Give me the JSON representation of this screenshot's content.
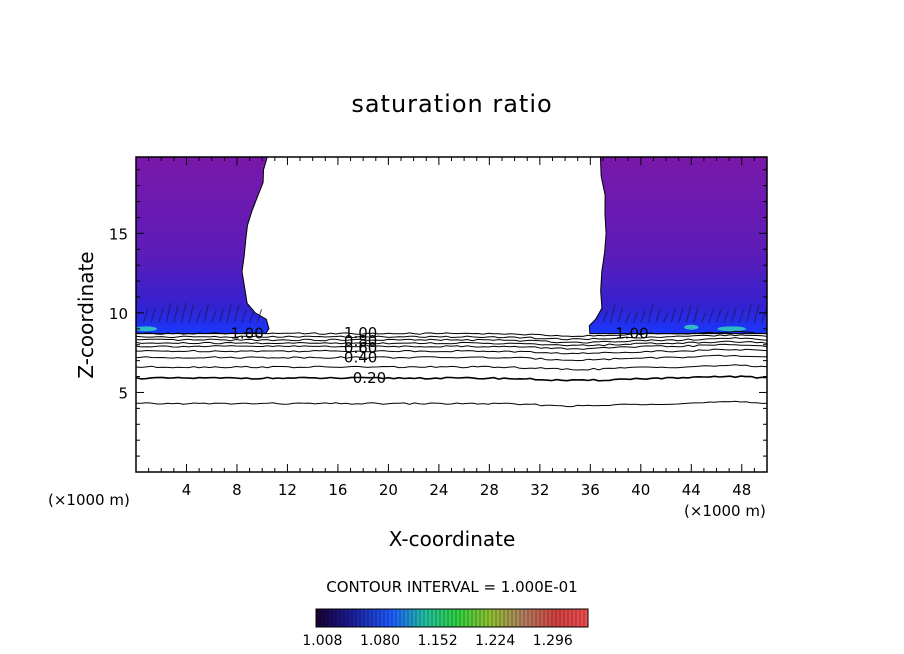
{
  "chart_data": {
    "type": "contour",
    "title": "saturation ratio",
    "xlabel": "X-coordinate",
    "ylabel": "Z-coordinate",
    "x_unit_left": "(×1000 m)",
    "x_unit_right": "(×1000 m)",
    "xlim": [
      0,
      50
    ],
    "ylim": [
      0,
      19.8
    ],
    "xticks": [
      "4",
      "8",
      "12",
      "16",
      "20",
      "24",
      "28",
      "32",
      "36",
      "40",
      "44",
      "48"
    ],
    "yticks": [
      "5",
      "10",
      "15"
    ],
    "contour_interval_text": "CONTOUR INTERVAL = 1.000E-01",
    "contour_levels": [
      0.1,
      0.2,
      0.3,
      0.4,
      0.5,
      0.6,
      0.7,
      0.8,
      0.9,
      1.0
    ],
    "contour_labels": [
      "0.20",
      "0.40",
      "0.60",
      "0.80",
      "1.00",
      "1.00",
      "1.00"
    ],
    "contour_heights": [
      {
        "level": 0.1,
        "z": 4.3
      },
      {
        "level": 0.2,
        "z": 5.9
      },
      {
        "level": 0.3,
        "z": 6.6
      },
      {
        "level": 0.4,
        "z": 7.2
      },
      {
        "level": 0.5,
        "z": 7.6
      },
      {
        "level": 0.6,
        "z": 7.9
      },
      {
        "level": 0.7,
        "z": 8.1
      },
      {
        "level": 0.8,
        "z": 8.3
      },
      {
        "level": 0.9,
        "z": 8.5
      },
      {
        "level": 1.0,
        "z": 8.7
      }
    ],
    "supersaturated_regions": [
      {
        "name": "left",
        "x_range": [
          0,
          10.5
        ],
        "z_range": [
          8.7,
          19.8
        ]
      },
      {
        "name": "right",
        "x_range": [
          36,
          50
        ],
        "z_range": [
          8.7,
          19.8
        ]
      }
    ],
    "colorbar_ticks": [
      "1.008",
      "1.080",
      "1.152",
      "1.224",
      "1.296"
    ],
    "colorbar_range": [
      1.0,
      1.34
    ],
    "colorbar_colors": [
      "#1a0030",
      "#1a1a90",
      "#1e5cff",
      "#20c0a0",
      "#30d040",
      "#90c030",
      "#b08060",
      "#d04040",
      "#f05050"
    ],
    "region_colors": {
      "top": "#7a1aa8",
      "mid": "#5a1ab0",
      "lower": "#3020c8",
      "base": "#1838ff",
      "peak": "#30c8c0"
    }
  }
}
